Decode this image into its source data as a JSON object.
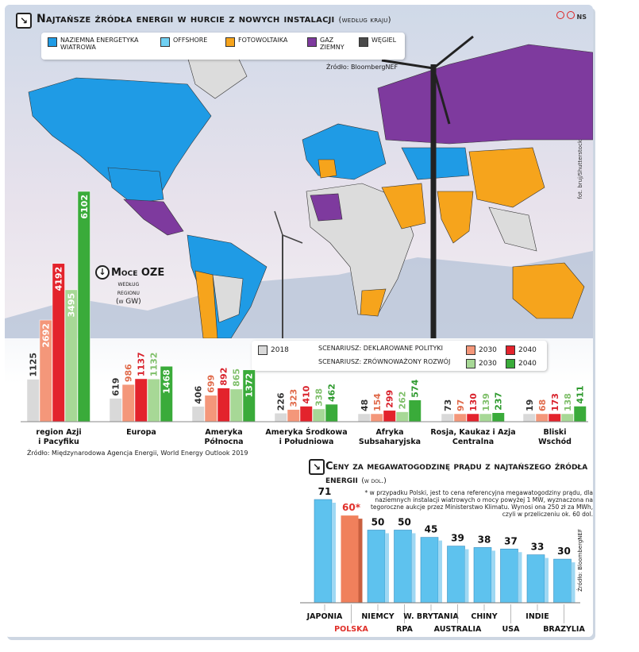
{
  "header": {
    "title": "Najtańsze źródła energii w hurcie z nowych instalacji",
    "title_note": "(według kraju)",
    "logo": "NS",
    "source": "Źródło: BloombergNEF",
    "photo_credit": "fot. bruj/Shutterstock"
  },
  "map_legend": [
    {
      "label": "Naziemna energetyka wiatrowa",
      "color": "#1f9be5"
    },
    {
      "label": "Offshore",
      "color": "#6fd0f3"
    },
    {
      "label": "Fotowoltaika",
      "color": "#f6a41c"
    },
    {
      "label": "Gaz ziemny",
      "color": "#7e3a9e"
    },
    {
      "label": "Węgiel",
      "color": "#4a4a4a"
    }
  ],
  "oze": {
    "title": "Moce OZE",
    "subtitle_lines": [
      "według",
      "regionu",
      "(w GW)"
    ],
    "legend": {
      "y2018": "2018",
      "decl": "scenariusz: deklarowane polityki",
      "sust": "scenariusz: zrównoważony rozwój",
      "y2030": "2030",
      "y2040": "2040"
    },
    "colors": {
      "y2018": "#d9d9d9",
      "decl2030": "#f4977a",
      "decl2040": "#e3232c",
      "sust2030": "#a7d896",
      "sust2040": "#3aab3a"
    },
    "source": "Źródło: Międzynarodowa Agencja Energii, World Energy Outlook 2019"
  },
  "chart_data": [
    {
      "type": "bar",
      "title": "Moce OZE według regionu (w GW)",
      "categories": [
        "region Azji i Pacyfiku",
        "Europa",
        "Ameryka Północna",
        "Ameryka Środkowa i Południowa",
        "Afryka Subsaharyjska",
        "Rosja, Kaukaz i Azja Centralna",
        "Bliski Wschód"
      ],
      "category_lines": [
        [
          "region Azji",
          "i Pacyfiku"
        ],
        [
          "Europa"
        ],
        [
          "Ameryka",
          "Północna"
        ],
        [
          "Ameryka Środkowa",
          "i Południowa"
        ],
        [
          "Afryka",
          "Subsaharyjska"
        ],
        [
          "Rosja, Kaukaz i Azja",
          "Centralna"
        ],
        [
          "Bliski",
          "Wschód"
        ]
      ],
      "series": [
        {
          "name": "2018",
          "values": [
            1125,
            619,
            406,
            226,
            48,
            73,
            19
          ]
        },
        {
          "name": "2030 (deklarowane polityki)",
          "values": [
            2692,
            986,
            699,
            323,
            154,
            97,
            68
          ]
        },
        {
          "name": "2040 (deklarowane polityki)",
          "values": [
            4192,
            1137,
            892,
            410,
            299,
            130,
            173
          ]
        },
        {
          "name": "2030 (zrównoważony rozwój)",
          "values": [
            3495,
            1132,
            865,
            338,
            262,
            139,
            138
          ]
        },
        {
          "name": "2040 (zrównoważony rozwój)",
          "values": [
            6102,
            1468,
            1372,
            462,
            574,
            237,
            411
          ]
        }
      ]
    },
    {
      "type": "bar",
      "title": "Ceny za megawatogodzinę prądu z najtańszego źródła energii",
      "ylabel": "(w dol.)",
      "categories": [
        "Japonia",
        "Polska",
        "Niemcy",
        "RPA",
        "W. Brytania",
        "Australia",
        "Chiny",
        "USA",
        "Indie",
        "Brazylia"
      ],
      "values": [
        71,
        60,
        50,
        50,
        45,
        39,
        38,
        37,
        33,
        30
      ],
      "value_labels": [
        "71",
        "60*",
        "50",
        "50",
        "45",
        "39",
        "38",
        "37",
        "33",
        "30"
      ],
      "highlight": "Polska"
    }
  ],
  "prices": {
    "title": "Ceny za megawatogodzinę prądu z najtańszego źródła energii",
    "unit": "(w dol.)",
    "note": "* w przypadku Polski, jest to cena referencyjna megawatogodziny prądu, dla naziemnych instalacji wiatrowych o mocy powyżej 1 MW, wyznaczona na tegoroczne aukcje przez Ministerstwo Klimatu. Wynosi ona 250 zł za MWh, czyli w przeliczeniu ok. 60 dol.",
    "source": "Źródło: BloombergNEF",
    "bar_color": "#5ec2ee",
    "highlight_color": "#f0805c"
  }
}
